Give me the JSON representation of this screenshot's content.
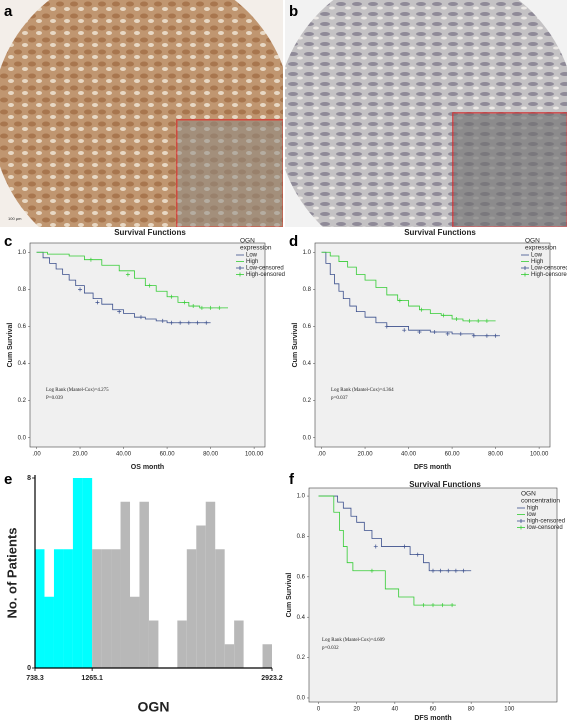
{
  "panel_labels": [
    "a",
    "b",
    "c",
    "d",
    "e",
    "f"
  ],
  "scale_bar": "100 μm",
  "chart_data": [
    {
      "type": "step",
      "title": "Survival Functions",
      "xlabel": "OS month",
      "ylabel": "Cum Survival",
      "legend_title": [
        "OGN",
        "expression"
      ],
      "annotations": [
        "Log Rank (Mantel-Cox)=4.275",
        "P=0.039"
      ],
      "xlim": [
        -3,
        105
      ],
      "ylim": [
        -0.05,
        1.05
      ],
      "xticks": [
        {
          "value": 0,
          "label": ".00"
        },
        {
          "value": 20,
          "label": "20.00"
        },
        {
          "value": 40,
          "label": "40.00"
        },
        {
          "value": 60,
          "label": "60.00"
        },
        {
          "value": 80,
          "label": "80.00"
        },
        {
          "value": 100,
          "label": "100.00"
        }
      ],
      "yticks": [
        {
          "value": 0,
          "label": "0.0"
        },
        {
          "value": 0.2,
          "label": "0.2"
        },
        {
          "value": 0.4,
          "label": "0.4"
        },
        {
          "value": 0.6,
          "label": "0.6"
        },
        {
          "value": 0.8,
          "label": "0.8"
        },
        {
          "value": 1,
          "label": "1.0"
        }
      ],
      "series": [
        {
          "name": "Low",
          "color": "#3b4f8c",
          "x": [
            0,
            3,
            6,
            9,
            12,
            15,
            18,
            22,
            26,
            30,
            35,
            40,
            45,
            50,
            55,
            60,
            80
          ],
          "values": [
            1,
            0.97,
            0.94,
            0.91,
            0.88,
            0.85,
            0.82,
            0.78,
            0.75,
            0.72,
            0.69,
            0.67,
            0.65,
            0.64,
            0.63,
            0.62,
            0.62
          ]
        },
        {
          "name": "High",
          "color": "#33cc33",
          "x": [
            0,
            5,
            15,
            22,
            30,
            38,
            45,
            50,
            55,
            60,
            65,
            70,
            75,
            88
          ],
          "values": [
            1,
            0.99,
            0.98,
            0.96,
            0.93,
            0.9,
            0.86,
            0.82,
            0.79,
            0.76,
            0.73,
            0.71,
            0.7,
            0.7
          ]
        },
        {
          "name": "Low-censored",
          "color": "#3b4f8c",
          "marker": "+",
          "x": [
            20,
            28,
            38,
            48,
            58,
            62,
            66,
            70,
            74,
            78
          ],
          "values": [
            0.8,
            0.73,
            0.68,
            0.65,
            0.63,
            0.62,
            0.62,
            0.62,
            0.62,
            0.62
          ]
        },
        {
          "name": "High-censored",
          "color": "#33cc33",
          "marker": "+",
          "x": [
            25,
            42,
            52,
            62,
            68,
            72,
            76,
            80,
            84
          ],
          "values": [
            0.96,
            0.88,
            0.82,
            0.76,
            0.73,
            0.71,
            0.7,
            0.7,
            0.7
          ]
        }
      ]
    },
    {
      "type": "step",
      "title": "Survival Functions",
      "xlabel": "DFS month",
      "ylabel": "Cum Survival",
      "legend_title": [
        "OGN",
        "expression"
      ],
      "annotations": [
        "Log Rank (Mantel-Cox)=4.364",
        "p=0.037"
      ],
      "xlim": [
        -3,
        105
      ],
      "ylim": [
        -0.05,
        1.05
      ],
      "xticks": [
        {
          "value": 0,
          "label": ".00"
        },
        {
          "value": 20,
          "label": "20.00"
        },
        {
          "value": 40,
          "label": "40.00"
        },
        {
          "value": 60,
          "label": "60.00"
        },
        {
          "value": 80,
          "label": "80.00"
        },
        {
          "value": 100,
          "label": "100.00"
        }
      ],
      "yticks": [
        {
          "value": 0,
          "label": "0.0"
        },
        {
          "value": 0.2,
          "label": "0.2"
        },
        {
          "value": 0.4,
          "label": "0.4"
        },
        {
          "value": 0.6,
          "label": "0.6"
        },
        {
          "value": 0.8,
          "label": "0.8"
        },
        {
          "value": 1,
          "label": "1.0"
        }
      ],
      "series": [
        {
          "name": "Low",
          "color": "#3b4f8c",
          "x": [
            0,
            2,
            4,
            6,
            8,
            10,
            13,
            16,
            20,
            25,
            30,
            40,
            50,
            60,
            70,
            82
          ],
          "values": [
            1,
            0.94,
            0.88,
            0.83,
            0.79,
            0.75,
            0.71,
            0.68,
            0.65,
            0.62,
            0.6,
            0.58,
            0.57,
            0.56,
            0.55,
            0.55
          ]
        },
        {
          "name": "High",
          "color": "#33cc33",
          "x": [
            0,
            4,
            8,
            12,
            16,
            20,
            25,
            30,
            35,
            40,
            45,
            50,
            55,
            60,
            65,
            80
          ],
          "values": [
            1,
            0.98,
            0.95,
            0.92,
            0.88,
            0.85,
            0.81,
            0.77,
            0.74,
            0.71,
            0.69,
            0.67,
            0.66,
            0.64,
            0.63,
            0.63
          ]
        },
        {
          "name": "Low-censored",
          "color": "#3b4f8c",
          "marker": "+",
          "x": [
            30,
            38,
            45,
            52,
            58,
            64,
            70,
            76,
            80
          ],
          "values": [
            0.6,
            0.58,
            0.57,
            0.57,
            0.56,
            0.56,
            0.55,
            0.55,
            0.55
          ]
        },
        {
          "name": "High-censored",
          "color": "#33cc33",
          "marker": "+",
          "x": [
            36,
            46,
            56,
            62,
            68,
            72,
            76
          ],
          "values": [
            0.74,
            0.69,
            0.66,
            0.64,
            0.63,
            0.63,
            0.63
          ]
        }
      ]
    },
    {
      "type": "histogram",
      "xlabel": "OGN",
      "ylabel": "No. of Patients",
      "xlim": [
        738.3,
        2923.2
      ],
      "ylim": [
        0,
        8
      ],
      "xticks": [
        738.3,
        1265.1,
        2923.2
      ],
      "yticks": [
        0,
        8
      ],
      "bins": [
        738.3,
        825.7,
        913.1,
        1000.5,
        1087.9,
        1175.3,
        1265.1,
        1352.4,
        1439.6,
        1526.9,
        1614.2,
        1701.4,
        1788.7,
        1876.0,
        1963.3,
        2050.5,
        2137.8,
        2225.1,
        2312.3,
        2399.6,
        2486.9,
        2574.2,
        2661.4,
        2748.7,
        2836.0,
        2923.2
      ],
      "counts": [
        5,
        3,
        5,
        5,
        8,
        8,
        5,
        5,
        5,
        7,
        3,
        7,
        2,
        0,
        0,
        2,
        5,
        6,
        7,
        5,
        1,
        2,
        0,
        0,
        1
      ],
      "colors": [
        "#00ffff",
        "#00ffff",
        "#00ffff",
        "#00ffff",
        "#00ffff",
        "#00ffff",
        "#b8b8b8",
        "#b8b8b8",
        "#b8b8b8",
        "#b8b8b8",
        "#b8b8b8",
        "#b8b8b8",
        "#b8b8b8",
        "#b8b8b8",
        "#b8b8b8",
        "#b8b8b8",
        "#b8b8b8",
        "#b8b8b8",
        "#b8b8b8",
        "#b8b8b8",
        "#b8b8b8",
        "#b8b8b8",
        "#b8b8b8",
        "#b8b8b8",
        "#b8b8b8"
      ]
    },
    {
      "type": "step",
      "title": "Survival Functions",
      "xlabel": "DFS month",
      "ylabel": "Cum Survival",
      "legend_title": [
        "OGN",
        "concentration"
      ],
      "annotations": [
        "Log Rank (Mantel-Cox)=4.609",
        "p=0.032"
      ],
      "xlim": [
        -5,
        125
      ],
      "ylim": [
        -0.02,
        1.04
      ],
      "xticks": [
        0,
        20,
        40,
        60,
        80,
        100
      ],
      "yticks": [
        {
          "value": 0,
          "label": "0.0"
        },
        {
          "value": 0.2,
          "label": "0.2"
        },
        {
          "value": 0.4,
          "label": "0.4"
        },
        {
          "value": 0.6,
          "label": "0.6"
        },
        {
          "value": 0.8,
          "label": "0.8"
        },
        {
          "value": 1,
          "label": "1.0"
        }
      ],
      "series": [
        {
          "name": "high",
          "color": "#3b4f8c",
          "x": [
            0,
            10,
            13,
            17,
            20,
            24,
            28,
            33,
            40,
            48,
            55,
            58,
            80
          ],
          "values": [
            1,
            0.97,
            0.94,
            0.9,
            0.87,
            0.83,
            0.79,
            0.75,
            0.75,
            0.71,
            0.67,
            0.63,
            0.63
          ]
        },
        {
          "name": "low",
          "color": "#33cc33",
          "x": [
            0,
            8,
            11,
            13,
            15,
            18,
            25,
            35,
            42,
            50,
            72
          ],
          "values": [
            1,
            0.92,
            0.83,
            0.75,
            0.67,
            0.63,
            0.63,
            0.54,
            0.5,
            0.46,
            0.46
          ]
        },
        {
          "name": "high-censored",
          "color": "#3b4f8c",
          "marker": "+",
          "x": [
            30,
            45,
            52,
            60,
            64,
            68,
            72,
            76
          ],
          "values": [
            0.75,
            0.75,
            0.71,
            0.63,
            0.63,
            0.63,
            0.63,
            0.63
          ]
        },
        {
          "name": "low-censored",
          "color": "#33cc33",
          "marker": "+",
          "x": [
            28,
            55,
            60,
            65,
            70
          ],
          "values": [
            0.63,
            0.46,
            0.46,
            0.46,
            0.46
          ]
        }
      ]
    }
  ]
}
